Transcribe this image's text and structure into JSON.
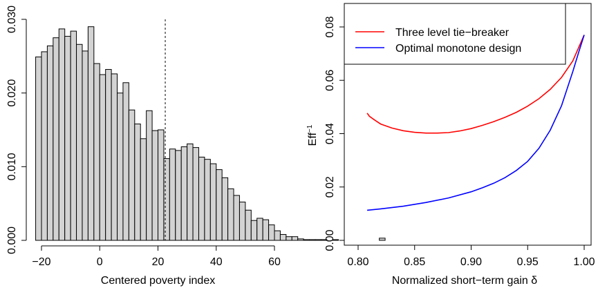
{
  "chart_data": [
    {
      "type": "bar",
      "subtype": "histogram",
      "xlabel": "Centered poverty index",
      "ylabel": "",
      "xlim": [
        -20,
        60
      ],
      "ylim": [
        0,
        0.03
      ],
      "xticks": [
        -20,
        0,
        20,
        40,
        60
      ],
      "yticks": [
        0.0,
        0.01,
        0.02,
        0.03
      ],
      "xtick_labels": [
        "−20",
        "0",
        "20",
        "40",
        "60"
      ],
      "ytick_labels": [
        "0.000",
        "0.010",
        "0.020",
        "0.030"
      ],
      "bin_width": 2,
      "bin_edges_start": -22,
      "values": [
        0.0249,
        0.0256,
        0.0264,
        0.0275,
        0.0287,
        0.0277,
        0.0284,
        0.0266,
        0.0257,
        0.029,
        0.024,
        0.0225,
        0.0232,
        0.0226,
        0.02,
        0.0214,
        0.0177,
        0.0158,
        0.0138,
        0.0176,
        0.0149,
        0.015,
        0.0111,
        0.0124,
        0.0122,
        0.0127,
        0.0131,
        0.0126,
        0.0113,
        0.011,
        0.0104,
        0.0096,
        0.0085,
        0.007,
        0.0061,
        0.0052,
        0.0041,
        0.0027,
        0.003,
        0.0028,
        0.0021,
        0.0013,
        0.0008,
        0.0005,
        0.0005,
        0.0002,
        0.0001,
        0.0001,
        0.0001,
        0.0001,
        0.0,
        0.0001,
        0.0,
        0.0,
        0.0,
        0.0,
        0.0,
        0.0,
        0.0,
        0.0003
      ],
      "vline_x": 22.5,
      "bar_fill": "#d3d3d3",
      "bar_stroke": "#000000"
    },
    {
      "type": "line",
      "xlabel": "Normalized short−term gain δ",
      "ylabel": "Eff",
      "ylabel_sup": "−1",
      "xlim": [
        0.8,
        1.0
      ],
      "ylim": [
        0.0,
        0.08
      ],
      "xticks": [
        0.8,
        0.85,
        0.9,
        0.95,
        1.0
      ],
      "yticks": [
        0.0,
        0.02,
        0.04,
        0.06,
        0.08
      ],
      "xtick_labels": [
        "0.80",
        "0.85",
        "0.90",
        "0.95",
        "1.00"
      ],
      "ytick_labels": [
        "0.00",
        "0.02",
        "0.04",
        "0.06",
        "0.08"
      ],
      "legend_position": "top-left",
      "series": [
        {
          "name": "Three level tie−breaker",
          "color": "#ff0000",
          "x": [
            0.808,
            0.81,
            0.815,
            0.82,
            0.83,
            0.84,
            0.85,
            0.86,
            0.87,
            0.88,
            0.89,
            0.9,
            0.91,
            0.92,
            0.93,
            0.94,
            0.95,
            0.96,
            0.97,
            0.98,
            0.99,
            1.0
          ],
          "y": [
            0.0477,
            0.0465,
            0.045,
            0.0436,
            0.0421,
            0.0411,
            0.0405,
            0.0402,
            0.0402,
            0.0404,
            0.041,
            0.0419,
            0.0431,
            0.0445,
            0.0461,
            0.048,
            0.0503,
            0.0531,
            0.0566,
            0.0611,
            0.0673,
            0.077
          ]
        },
        {
          "name": "Optimal monotone design",
          "color": "#0000ff",
          "x": [
            0.808,
            0.82,
            0.84,
            0.86,
            0.88,
            0.9,
            0.91,
            0.92,
            0.93,
            0.94,
            0.95,
            0.96,
            0.97,
            0.98,
            0.99,
            0.995,
            1.0
          ],
          "y": [
            0.0113,
            0.0118,
            0.0128,
            0.0142,
            0.0159,
            0.0182,
            0.0197,
            0.0214,
            0.0235,
            0.0262,
            0.0296,
            0.0345,
            0.0413,
            0.0505,
            0.0633,
            0.0703,
            0.077
          ]
        }
      ]
    }
  ]
}
